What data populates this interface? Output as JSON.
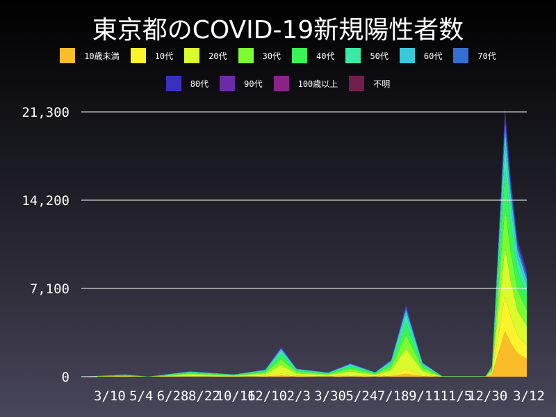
{
  "chart_data": {
    "type": "area",
    "stacked": true,
    "title": "東京都のCOVID-19新規陽性者数",
    "xlabel": "",
    "ylabel": "",
    "ylim": [
      0,
      21300
    ],
    "yticks": [
      0,
      7100,
      14200,
      21300
    ],
    "ytick_labels": [
      "0",
      "7,100",
      "14,200",
      "21,300"
    ],
    "xtick_labels": [
      "3/10",
      "5/4",
      "6/28",
      "8/22",
      "10/16",
      "12/10",
      "2/3",
      "3/30",
      "5/24",
      "7/18",
      "9/11",
      "11/5",
      "12/30",
      "3/12"
    ],
    "xtick_dates": [
      "2020-03-10",
      "2020-05-04",
      "2020-06-28",
      "2020-08-22",
      "2020-10-16",
      "2020-12-10",
      "2021-02-03",
      "2021-03-30",
      "2021-05-24",
      "2021-07-18",
      "2021-09-11",
      "2021-11-05",
      "2021-12-30",
      "2022-03-12"
    ],
    "grid": true,
    "legend": "top",
    "x": [
      "2020-01-24",
      "2020-04-10",
      "2020-05-20",
      "2020-08-01",
      "2020-10-16",
      "2020-12-10",
      "2021-01-07",
      "2021-02-03",
      "2021-03-30",
      "2021-05-08",
      "2021-06-20",
      "2021-07-18",
      "2021-08-13",
      "2021-09-11",
      "2021-10-15",
      "2021-12-30",
      "2022-01-10",
      "2022-01-20",
      "2022-02-02",
      "2022-02-12",
      "2022-02-24",
      "2022-03-12"
    ],
    "series": [
      {
        "name": "10歳未満",
        "color": "#fbbc2a",
        "values": [
          0,
          8,
          0,
          18,
          8,
          24,
          98,
          27,
          14,
          45,
          15,
          56,
          236,
          48,
          2,
          2,
          153,
          1700,
          3672,
          2720,
          1870,
          1445
        ]
      },
      {
        "name": "10代",
        "color": "#fdf32b",
        "values": [
          0,
          11,
          1,
          28,
          12,
          36,
          147,
          41,
          22,
          67,
          23,
          84,
          354,
          72,
          4,
          4,
          117,
          1300,
          2808,
          2080,
          1430,
          1105
        ]
      },
      {
        "name": "20代",
        "color": "#dbfb2d",
        "values": [
          0,
          53,
          3,
          129,
          56,
          168,
          686,
          190,
          101,
          314,
          106,
          392,
          1652,
          336,
          17,
          17,
          162,
          1800,
          3888,
          2880,
          1980,
          1530
        ]
      },
      {
        "name": "30代",
        "color": "#7bfb30",
        "values": [
          0,
          36,
          2,
          87,
          38,
          114,
          466,
          129,
          68,
          213,
          72,
          266,
          1121,
          228,
          11,
          11,
          135,
          1500,
          3240,
          2400,
          1650,
          1275
        ]
      },
      {
        "name": "40代",
        "color": "#38f457",
        "values": [
          0,
          30,
          2,
          74,
          32,
          96,
          392,
          109,
          58,
          179,
          61,
          224,
          944,
          192,
          10,
          10,
          126,
          1400,
          3024,
          2240,
          1540,
          1190
        ]
      },
      {
        "name": "50代",
        "color": "#39eaa6",
        "values": [
          0,
          23,
          1,
          55,
          24,
          72,
          294,
          82,
          43,
          134,
          46,
          168,
          708,
          144,
          7,
          7,
          81,
          900,
          1944,
          1440,
          990,
          765
        ]
      },
      {
        "name": "60代",
        "color": "#38c9dc",
        "values": [
          0,
          11,
          1,
          28,
          12,
          36,
          147,
          41,
          22,
          67,
          23,
          84,
          354,
          72,
          4,
          4,
          54,
          600,
          1296,
          960,
          660,
          510
        ]
      },
      {
        "name": "70代",
        "color": "#3570d0",
        "values": [
          0,
          8,
          0,
          18,
          8,
          24,
          98,
          27,
          14,
          45,
          15,
          56,
          236,
          48,
          2,
          2,
          36,
          400,
          864,
          640,
          440,
          340
        ]
      },
      {
        "name": "80代",
        "color": "#3a2fbe",
        "values": [
          0,
          6,
          0,
          14,
          6,
          18,
          74,
          20,
          11,
          34,
          11,
          42,
          177,
          36,
          2,
          2,
          27,
          300,
          648,
          480,
          330,
          255
        ]
      },
      {
        "name": "90代",
        "color": "#6a2ba6",
        "values": [
          0,
          2,
          0,
          5,
          2,
          6,
          25,
          7,
          4,
          11,
          4,
          14,
          59,
          12,
          1,
          1,
          9,
          100,
          216,
          160,
          110,
          85
        ]
      },
      {
        "name": "100歳以上",
        "color": "#8a2388",
        "values": [
          0,
          0,
          0,
          0,
          0,
          0,
          0,
          0,
          0,
          0,
          0,
          0,
          0,
          0,
          0,
          0,
          0,
          0,
          0,
          0,
          0,
          0
        ]
      },
      {
        "name": "不明",
        "color": "#701f4c",
        "values": [
          0,
          2,
          0,
          5,
          2,
          6,
          25,
          7,
          4,
          11,
          4,
          14,
          59,
          12,
          1,
          1,
          0,
          0,
          0,
          0,
          0,
          0
        ]
      }
    ]
  }
}
